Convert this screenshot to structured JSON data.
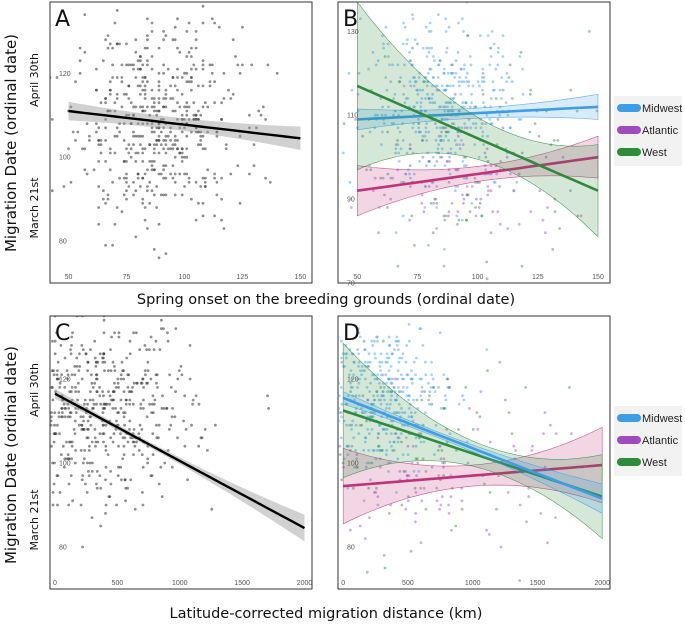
{
  "figure": {
    "xlabel_top": "Spring onset on the breeding grounds (ordinal date)",
    "xlabel_bottom": "Latitude-corrected migration distance (km)",
    "ylabel": "Migration Date (ordinal date)",
    "ylabel_top_date": "April 30th",
    "ylabel_bottom_date": "March 21st"
  },
  "legend": [
    {
      "name": "Midwest",
      "color": "#3d9de8"
    },
    {
      "name": "Atlantic",
      "color": "#a04bc0"
    },
    {
      "name": "West",
      "color": "#2e8b3a"
    }
  ],
  "chart_data": [
    {
      "panel": "A",
      "type": "scatter",
      "xlim": [
        42,
        155
      ],
      "ylim": [
        70,
        137
      ],
      "xticks": [
        50,
        75,
        100,
        125,
        150
      ],
      "yticks": [
        80,
        100,
        120
      ],
      "xlabel": "Spring onset on the breeding grounds (ordinal date)",
      "ylabel": "Migration Date (ordinal date)",
      "cloud": {
        "x_center": 88,
        "x_spread": 18,
        "y_center": 108,
        "y_spread": 12,
        "n": 520
      },
      "fit": {
        "x": [
          50,
          150
        ],
        "y": [
          111,
          104.5
        ],
        "ci": [
          2.2,
          1.5,
          2.8
        ],
        "color": "#000000"
      }
    },
    {
      "panel": "B",
      "type": "scatter",
      "xlim": [
        42,
        155
      ],
      "ylim": [
        70,
        137
      ],
      "xticks": [
        50,
        75,
        100,
        125,
        150
      ],
      "yticks": [
        70,
        90,
        110,
        130
      ],
      "clouds": [
        {
          "group": "Midwest",
          "color": "#3d9de8",
          "x_center": 85,
          "x_spread": 16,
          "y_center": 112,
          "y_spread": 10,
          "n": 430
        },
        {
          "group": "Atlantic",
          "color": "#a04bc0",
          "x_center": 95,
          "x_spread": 22,
          "y_center": 95,
          "y_spread": 9,
          "n": 110
        },
        {
          "group": "West",
          "color": "#2e8b3a",
          "x_center": 100,
          "x_spread": 25,
          "y_center": 100,
          "y_spread": 14,
          "n": 90
        }
      ],
      "fits": [
        {
          "group": "Atlantic",
          "color": "#c0337a",
          "x": [
            50,
            150
          ],
          "y": [
            92,
            100
          ],
          "ci": [
            6,
            1.8,
            5
          ]
        },
        {
          "group": "Midwest",
          "color": "#3d9de8",
          "x": [
            50,
            150
          ],
          "y": [
            109,
            112
          ],
          "ci": [
            2.5,
            1.2,
            3
          ]
        },
        {
          "group": "West",
          "color": "#2e8b3a",
          "x": [
            50,
            150
          ],
          "y": [
            117,
            92
          ],
          "ci": [
            20,
            5,
            11
          ]
        }
      ]
    },
    {
      "panel": "C",
      "type": "scatter",
      "xlim": [
        -40,
        2060
      ],
      "ylim": [
        70,
        135
      ],
      "xticks": [
        0,
        500,
        1000,
        1500,
        2000
      ],
      "yticks": [
        80,
        100,
        120
      ],
      "xlabel": "Latitude-corrected migration distance (km)",
      "cloud": {
        "x_center": 350,
        "x_spread": 380,
        "y_center": 112,
        "y_spread": 11,
        "n": 560
      },
      "fit": {
        "x": [
          0,
          2000
        ],
        "y": [
          116.5,
          84.5
        ],
        "ci": [
          1.2,
          0.8,
          3.2
        ],
        "color": "#000000"
      }
    },
    {
      "panel": "D",
      "type": "scatter",
      "xlim": [
        -40,
        2060
      ],
      "ylim": [
        70,
        135
      ],
      "xticks": [
        0,
        500,
        1000,
        1500,
        2000
      ],
      "yticks": [
        80,
        100,
        120
      ],
      "clouds": [
        {
          "group": "Midwest",
          "color": "#3d9de8",
          "x_center": 250,
          "x_spread": 260,
          "y_center": 116,
          "y_spread": 9,
          "n": 420
        },
        {
          "group": "Atlantic",
          "color": "#a04bc0",
          "x_center": 700,
          "x_spread": 450,
          "y_center": 97,
          "y_spread": 9,
          "n": 110
        },
        {
          "group": "West",
          "color": "#2e8b3a",
          "x_center": 500,
          "x_spread": 450,
          "y_center": 106,
          "y_spread": 13,
          "n": 90
        }
      ],
      "fits": [
        {
          "group": "Atlantic",
          "color": "#c0337a",
          "x": [
            0,
            2000
          ],
          "y": [
            94.5,
            99.5
          ],
          "ci": [
            9,
            2.5,
            9
          ]
        },
        {
          "group": "West",
          "color": "#2e8b3a",
          "x": [
            0,
            2000
          ],
          "y": [
            112.5,
            92
          ],
          "ci": [
            16,
            3,
            10
          ]
        },
        {
          "group": "Midwest",
          "color": "#3d9de8",
          "x": [
            0,
            2000
          ],
          "y": [
            115.5,
            91.5
          ],
          "ci": [
            1.5,
            0.8,
            3.5
          ]
        }
      ]
    }
  ]
}
